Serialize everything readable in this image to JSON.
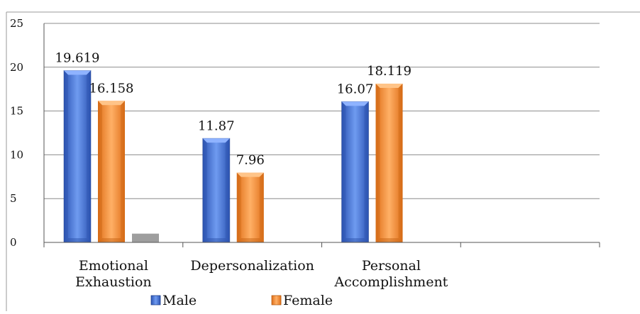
{
  "header_fragment": "",
  "colors": {
    "male": "#3f6fd1",
    "female": "#f08a2a",
    "third": "#9e9e9e",
    "grid": "#8c8c8c",
    "axis": "#555555",
    "border": "#999999"
  },
  "chart_data": {
    "type": "bar",
    "title": "",
    "xlabel": "",
    "ylabel": "",
    "categories": [
      [
        "Emotional",
        "Exhaustion"
      ],
      [
        "Depersonalization"
      ],
      [
        "Personal",
        "Accomplishment"
      ],
      [
        ""
      ]
    ],
    "series": [
      {
        "name": "Male",
        "values": [
          19.619,
          11.87,
          16.07,
          null
        ],
        "labels": [
          "19.619",
          "11.87",
          "16.07",
          ""
        ]
      },
      {
        "name": "Female",
        "values": [
          16.158,
          7.96,
          18.119,
          null
        ],
        "labels": [
          "16.158",
          "7.96",
          "18.119",
          ""
        ]
      },
      {
        "name": "",
        "values": [
          1,
          null,
          null,
          null
        ],
        "labels": [
          "",
          "",
          "",
          ""
        ]
      }
    ],
    "ylim": [
      0,
      25
    ],
    "yticks": [
      0,
      5,
      10,
      15,
      20,
      25
    ],
    "grid": true,
    "legend": "bottom"
  }
}
